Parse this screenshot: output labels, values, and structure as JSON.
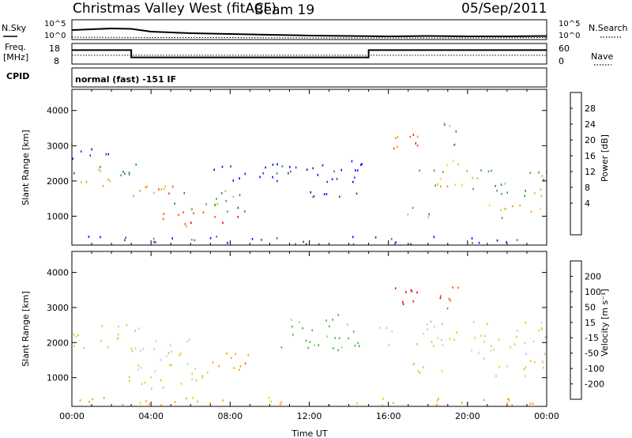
{
  "header": {
    "station": "Christmas Valley West (fitACF)",
    "beam": "Beam 19",
    "date": "05/Sep/2011",
    "mode": "normal (fast) -151 IF"
  },
  "top_panels": {
    "nsky_label": "N.Sky",
    "nsearch_label": "N.Search",
    "freq_label": "Freq.",
    "freq_unit": "[MHz]",
    "nave_label": "Nave",
    "cpid_label": "CPID",
    "noise_ticks": [
      "10^5",
      "10^0"
    ],
    "noise_ticks_right": [
      "10^5",
      "10^0"
    ],
    "freq_ticks": [
      "18",
      "8"
    ],
    "nave_ticks": [
      "60",
      "0"
    ]
  },
  "chart_data": [
    {
      "type": "line",
      "panel": "noise",
      "series": [
        {
          "name": "N.Sky",
          "x": [
            0,
            1,
            2,
            3,
            4,
            5,
            6,
            7,
            8,
            10,
            12,
            14,
            16,
            18,
            20,
            22,
            24
          ],
          "values": [
            2.4,
            2.6,
            2.8,
            2.7,
            2.0,
            1.8,
            1.6,
            1.5,
            1.4,
            1.2,
            1.0,
            0.9,
            0.8,
            0.9,
            0.8,
            0.8,
            0.9
          ]
        },
        {
          "name": "N.Search",
          "x": [
            0,
            4,
            8,
            12,
            16,
            20,
            24
          ],
          "values": [
            0.6,
            0.5,
            0.5,
            0.4,
            0.4,
            0.4,
            0.5
          ]
        }
      ],
      "ylim": [
        0,
        5
      ]
    },
    {
      "type": "line",
      "panel": "frequency",
      "series": [
        {
          "name": "Freq.",
          "x": [
            0,
            3.0,
            3.0,
            15.0,
            15.0,
            24
          ],
          "values": [
            15.5,
            15.5,
            10.5,
            10.5,
            15.5,
            15.5
          ]
        },
        {
          "name": "Nave",
          "x": [
            0,
            24
          ],
          "values": [
            12,
            12
          ]
        }
      ],
      "ylim": [
        6,
        20
      ]
    },
    {
      "type": "heatmap",
      "panel": "power",
      "xlabel": "",
      "ylabel": "Slant Range [km]",
      "xlim": [
        0,
        24
      ],
      "ylim": [
        180,
        4600
      ],
      "yticks": [
        "1000",
        "2000",
        "3000",
        "4000"
      ],
      "colorbar": {
        "label": "Power [dB]",
        "ticks": [
          "28",
          "24",
          "20",
          "16",
          "12",
          "8",
          "4"
        ],
        "colors": [
          "#0000ff",
          "#1f3fa0",
          "#2f7f5f",
          "#43a04a",
          "#9fd040",
          "#ffd200",
          "#ff9000",
          "#ff4a00",
          "#ff0000"
        ]
      },
      "regions": [
        {
          "t0": 0.0,
          "t1": 2.3,
          "r0": 1800,
          "r1": 2050,
          "level": 0.6
        },
        {
          "t0": 0.0,
          "t1": 3.5,
          "r0": 2100,
          "r1": 2500,
          "level": 0.35
        },
        {
          "t0": 0.0,
          "t1": 2.0,
          "r0": 2500,
          "r1": 2900,
          "level": 0.15
        },
        {
          "t0": 2.8,
          "t1": 6.0,
          "r0": 1450,
          "r1": 1900,
          "level": 0.7
        },
        {
          "t0": 4.0,
          "t1": 8.5,
          "r0": 650,
          "r1": 1100,
          "level": 0.9
        },
        {
          "t0": 5.0,
          "t1": 8.8,
          "r0": 1100,
          "r1": 1700,
          "level": 0.35
        },
        {
          "t0": 7.0,
          "t1": 12.0,
          "r0": 1900,
          "r1": 2500,
          "level": 0.1
        },
        {
          "t0": 12.0,
          "t1": 14.8,
          "r0": 1500,
          "r1": 2700,
          "level": 0.15
        },
        {
          "t0": 16.0,
          "t1": 17.5,
          "r0": 2900,
          "r1": 3600,
          "level": 0.8
        },
        {
          "t0": 17.5,
          "t1": 20.0,
          "r0": 1800,
          "r1": 2600,
          "level": 0.55
        },
        {
          "t0": 18.5,
          "t1": 19.5,
          "r0": 2900,
          "r1": 3700,
          "level": 0.4
        },
        {
          "t0": 16.5,
          "t1": 18.5,
          "r0": 950,
          "r1": 1250,
          "level": 0.4
        },
        {
          "t0": 20.0,
          "t1": 24.0,
          "r0": 1550,
          "r1": 2300,
          "level": 0.35
        },
        {
          "t0": 21.0,
          "t1": 24.0,
          "r0": 900,
          "r1": 1300,
          "level": 0.55
        },
        {
          "t0": 0.0,
          "t1": 24.0,
          "r0": 180,
          "r1": 420,
          "level": 0.2
        }
      ]
    },
    {
      "type": "heatmap",
      "panel": "velocity",
      "xlabel": "Time UT",
      "ylabel": "Slant Range [km]",
      "xlim": [
        0,
        24
      ],
      "ylim": [
        180,
        4600
      ],
      "xticks": [
        "00:00",
        "04:00",
        "08:00",
        "12:00",
        "16:00",
        "20:00",
        "00:00"
      ],
      "yticks": [
        "1000",
        "2000",
        "3000",
        "4000"
      ],
      "colorbar": {
        "label": "Velocity [m s⁻¹]",
        "ticks": [
          "200",
          "100",
          "50",
          "15",
          "-15",
          "-50",
          "-100",
          "-200"
        ],
        "colors": [
          "#ff0000",
          "#ff5000",
          "#ff9a00",
          "#ffc000",
          "#c8c8c8",
          "#a0dc50",
          "#3cb43c",
          "#1f6f5f",
          "#1f3fa0"
        ]
      },
      "regions": [
        {
          "t0": 0.0,
          "t1": 3.5,
          "r0": 1800,
          "r1": 2500,
          "v": 0.0
        },
        {
          "t0": 3.0,
          "t1": 6.0,
          "r0": 1300,
          "r1": 2100,
          "v": 0.0
        },
        {
          "t0": 2.5,
          "t1": 7.0,
          "r0": 650,
          "r1": 1300,
          "v": 0.0
        },
        {
          "t0": 7.0,
          "t1": 9.0,
          "r0": 1000,
          "r1": 1700,
          "v": -60
        },
        {
          "t0": 0.0,
          "t1": 24.0,
          "r0": 180,
          "r1": 420,
          "v": -40
        },
        {
          "t0": 10.5,
          "t1": 14.5,
          "r0": 1700,
          "r1": 2800,
          "v": 40
        },
        {
          "t0": 16.0,
          "t1": 17.5,
          "r0": 2900,
          "r1": 3600,
          "v": -180
        },
        {
          "t0": 18.5,
          "t1": 19.5,
          "r0": 2900,
          "r1": 3700,
          "v": -150
        },
        {
          "t0": 15.5,
          "t1": 24.0,
          "r0": 1800,
          "r1": 2600,
          "v": 0.0
        },
        {
          "t0": 17.0,
          "t1": 19.0,
          "r0": 1100,
          "r1": 1500,
          "v": 0.0
        },
        {
          "t0": 20.0,
          "t1": 24.0,
          "r0": 1000,
          "r1": 1800,
          "v": 0.0
        }
      ]
    }
  ]
}
